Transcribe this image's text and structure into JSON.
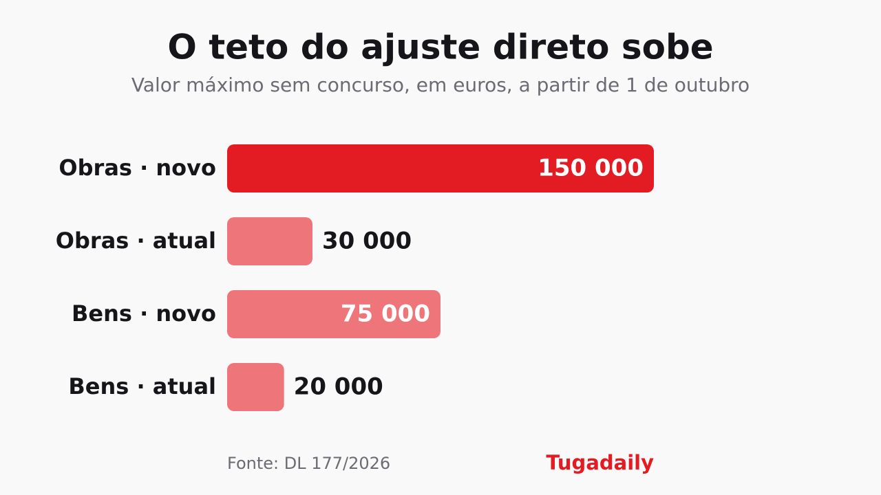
{
  "chart_data": {
    "type": "bar",
    "orientation": "horizontal",
    "title": "O teto do ajuste direto sobe",
    "subtitle": "Valor máximo sem concurso, em euros, a partir de 1 de outubro",
    "categories": [
      "Obras · novo",
      "Obras · atual",
      "Bens · novo",
      "Bens · atual"
    ],
    "values": [
      150000,
      30000,
      75000,
      20000
    ],
    "value_labels": [
      "150 000",
      "30 000",
      "75 000",
      "20 000"
    ],
    "colors": [
      "#e31b23",
      "#ee7579",
      "#ee7579",
      "#ee7579"
    ],
    "source": "Fonte: DL 177/2026",
    "brand": "Tugadaily"
  }
}
